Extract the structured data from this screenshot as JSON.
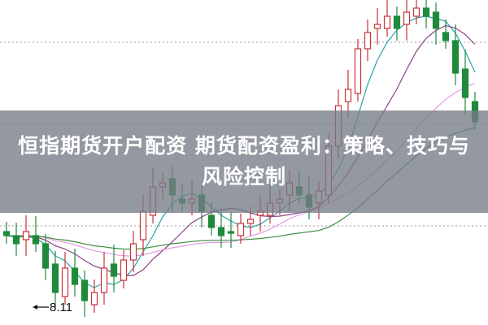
{
  "banner": {
    "title": "恒指期货开户配资 期货配资盈利：策略、技巧与风险控制"
  },
  "chart_data": {
    "type": "candlestick",
    "annotations": [
      {
        "text": "8.11",
        "marks": "low"
      }
    ],
    "closes": [
      8.99,
      8.89,
      9.04,
      8.89,
      8.59,
      8.29,
      8.59,
      8.39,
      8.19,
      8.29,
      8.59,
      8.49,
      8.69,
      8.89,
      9.29,
      9.59,
      9.64,
      9.49,
      9.39,
      9.44,
      9.29,
      9.09,
      8.99,
      9.04,
      9.14,
      9.19,
      9.29,
      9.39,
      9.44,
      9.64,
      9.49,
      9.34,
      9.54,
      10.09,
      10.59,
      10.79,
      11.29,
      11.49,
      11.59,
      11.69,
      11.54,
      11.74,
      11.79,
      11.69,
      11.54,
      11.39,
      10.99,
      10.69,
      10.39
    ],
    "first_open": 9.04,
    "low": 8.11,
    "moving_averages": [
      {
        "period": 5,
        "color": "#2aa3a8"
      },
      {
        "period": 10,
        "color": "#8b3f86"
      },
      {
        "period": 20,
        "color": "#e39ae0"
      },
      {
        "period": 30,
        "color": "#3c8c3c"
      }
    ],
    "colors": {
      "up": "#c8323a",
      "down": "#1e8a3a",
      "grid": "#999999"
    },
    "grid": true
  }
}
